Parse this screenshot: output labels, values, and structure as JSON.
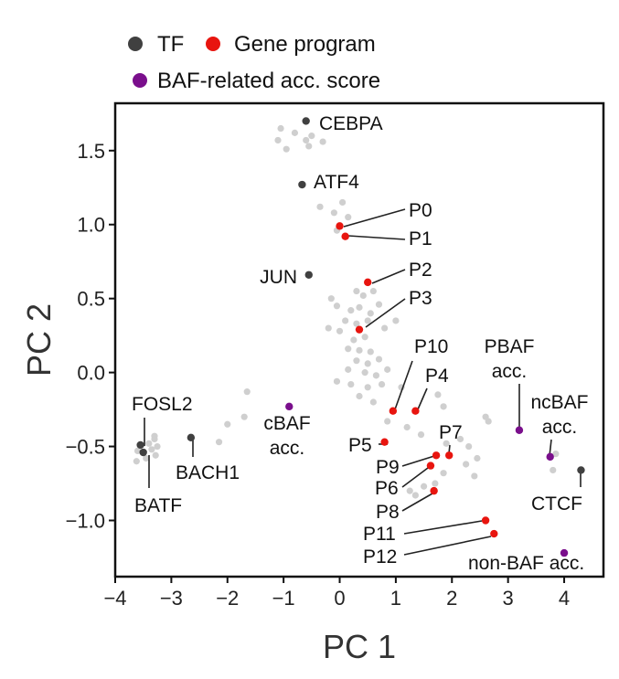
{
  "chart_data": {
    "type": "scatter",
    "xlabel": "PC 1",
    "ylabel": "PC 2",
    "xlim": [
      -4.0,
      4.7
    ],
    "ylim": [
      -1.38,
      1.82
    ],
    "xticks": [
      -4,
      -3,
      -2,
      -1,
      0,
      1,
      2,
      3,
      4
    ],
    "xtick_labels": [
      "−4",
      "−3",
      "−2",
      "−1",
      "0",
      "1",
      "2",
      "3",
      "4"
    ],
    "yticks": [
      -1.0,
      -0.5,
      0.0,
      0.5,
      1.0,
      1.5
    ],
    "ytick_labels": [
      "−1.0",
      "−0.5",
      "0.0",
      "0.5",
      "1.0",
      "1.5"
    ],
    "grid": false,
    "legend": {
      "placement": "top",
      "entries": [
        {
          "label": "TF",
          "color": "#404040"
        },
        {
          "label": "Gene program",
          "color": "#e8150f"
        },
        {
          "label": "BAF-related acc. score",
          "color": "#7a0f8c"
        }
      ]
    },
    "colors": {
      "tf": "#404040",
      "program": "#e8150f",
      "baf": "#7a0f8c",
      "background": "#cfcfcf"
    },
    "series": [
      {
        "name": "TF",
        "points": [
          {
            "label": "CEBPA",
            "x": -0.6,
            "y": 1.7
          },
          {
            "label": "ATF4",
            "x": -0.67,
            "y": 1.27
          },
          {
            "label": "JUN",
            "x": -0.55,
            "y": 0.66
          },
          {
            "label": "FOSL2",
            "x": -3.55,
            "y": -0.49
          },
          {
            "label": "BATF",
            "x": -3.5,
            "y": -0.54
          },
          {
            "label": "BACH1",
            "x": -2.65,
            "y": -0.44
          },
          {
            "label": "CTCF",
            "x": 4.3,
            "y": -0.66
          }
        ]
      },
      {
        "name": "Gene program",
        "points": [
          {
            "label": "P0",
            "x": 0.0,
            "y": 0.99
          },
          {
            "label": "P1",
            "x": 0.1,
            "y": 0.92
          },
          {
            "label": "P2",
            "x": 0.5,
            "y": 0.61
          },
          {
            "label": "P3",
            "x": 0.35,
            "y": 0.29
          },
          {
            "label": "P10",
            "x": 0.95,
            "y": -0.26
          },
          {
            "label": "P4",
            "x": 1.35,
            "y": -0.26
          },
          {
            "label": "P5",
            "x": 0.8,
            "y": -0.47
          },
          {
            "label": "P7",
            "x": 1.95,
            "y": -0.56
          },
          {
            "label": "P9",
            "x": 1.72,
            "y": -0.56
          },
          {
            "label": "P6",
            "x": 1.62,
            "y": -0.63
          },
          {
            "label": "P8",
            "x": 1.68,
            "y": -0.8
          },
          {
            "label": "P11",
            "x": 2.6,
            "y": -1.0
          },
          {
            "label": "P12",
            "x": 2.75,
            "y": -1.09
          }
        ]
      },
      {
        "name": "BAF-related acc. score",
        "points": [
          {
            "label": "cBAF acc.",
            "x": -0.9,
            "y": -0.23
          },
          {
            "label": "PBAF acc.",
            "x": 3.2,
            "y": -0.39
          },
          {
            "label": "ncBAF acc.",
            "x": 3.75,
            "y": -0.57
          },
          {
            "label": "non-BAF acc.",
            "x": 4.0,
            "y": -1.22
          }
        ]
      },
      {
        "points": [
          {
            "x": -1.05,
            "y": 1.65
          },
          {
            "x": -0.8,
            "y": 1.62
          },
          {
            "x": -1.1,
            "y": 1.57
          },
          {
            "x": -0.6,
            "y": 1.57
          },
          {
            "x": -0.95,
            "y": 1.51
          },
          {
            "x": -0.55,
            "y": 1.53
          },
          {
            "x": -0.3,
            "y": 1.56
          },
          {
            "x": -0.5,
            "y": 1.6
          },
          {
            "x": 0.05,
            "y": 1.15
          },
          {
            "x": -0.1,
            "y": 1.08
          },
          {
            "x": 0.15,
            "y": 1.05
          },
          {
            "x": -0.35,
            "y": 1.12
          },
          {
            "x": -0.05,
            "y": 0.96
          },
          {
            "x": 0.3,
            "y": 0.55
          },
          {
            "x": 0.42,
            "y": 0.52
          },
          {
            "x": 0.6,
            "y": 0.55
          },
          {
            "x": -0.15,
            "y": 0.5
          },
          {
            "x": -0.05,
            "y": 0.45
          },
          {
            "x": 0.2,
            "y": 0.42
          },
          {
            "x": 0.35,
            "y": 0.44
          },
          {
            "x": 0.55,
            "y": 0.4
          },
          {
            "x": 0.7,
            "y": 0.46
          },
          {
            "x": 0.1,
            "y": 0.35
          },
          {
            "x": 0.3,
            "y": 0.33
          },
          {
            "x": 0.5,
            "y": 0.35
          },
          {
            "x": -0.2,
            "y": 0.3
          },
          {
            "x": 0.0,
            "y": 0.28
          },
          {
            "x": 0.25,
            "y": 0.22
          },
          {
            "x": 0.45,
            "y": 0.24
          },
          {
            "x": 0.8,
            "y": 0.3
          },
          {
            "x": 1.0,
            "y": 0.35
          },
          {
            "x": 0.15,
            "y": 0.16
          },
          {
            "x": 0.35,
            "y": 0.15
          },
          {
            "x": 0.55,
            "y": 0.14
          },
          {
            "x": 0.3,
            "y": 0.08
          },
          {
            "x": 0.5,
            "y": 0.06
          },
          {
            "x": 0.7,
            "y": 0.09
          },
          {
            "x": 0.15,
            "y": 0.02
          },
          {
            "x": 0.45,
            "y": 0.0
          },
          {
            "x": 0.65,
            "y": -0.02
          },
          {
            "x": 0.85,
            "y": 0.02
          },
          {
            "x": -0.05,
            "y": -0.06
          },
          {
            "x": 0.2,
            "y": -0.08
          },
          {
            "x": 0.5,
            "y": -0.1
          },
          {
            "x": 0.75,
            "y": -0.08
          },
          {
            "x": 0.35,
            "y": -0.16
          },
          {
            "x": 1.1,
            "y": -0.1
          },
          {
            "x": 0.6,
            "y": -0.2
          },
          {
            "x": 1.75,
            "y": -0.15
          },
          {
            "x": 1.85,
            "y": -0.23
          },
          {
            "x": 0.85,
            "y": -0.33
          },
          {
            "x": 1.2,
            "y": -0.37
          },
          {
            "x": 1.45,
            "y": -0.42
          },
          {
            "x": 1.9,
            "y": -0.48
          },
          {
            "x": 2.15,
            "y": -0.45
          },
          {
            "x": 2.3,
            "y": -0.5
          },
          {
            "x": 2.25,
            "y": -0.62
          },
          {
            "x": 2.45,
            "y": -0.58
          },
          {
            "x": 2.4,
            "y": -0.7
          },
          {
            "x": 1.85,
            "y": -0.68
          },
          {
            "x": 1.7,
            "y": -0.75
          },
          {
            "x": 1.25,
            "y": -0.8
          },
          {
            "x": 1.35,
            "y": -0.83
          },
          {
            "x": 1.5,
            "y": -0.77
          },
          {
            "x": 2.6,
            "y": -0.3
          },
          {
            "x": 2.65,
            "y": -0.33
          },
          {
            "x": 3.85,
            "y": -0.55
          },
          {
            "x": 3.8,
            "y": -0.66
          },
          {
            "x": -1.65,
            "y": -0.13
          },
          {
            "x": -1.7,
            "y": -0.3
          },
          {
            "x": -2.0,
            "y": -0.35
          },
          {
            "x": -2.15,
            "y": -0.47
          },
          {
            "x": -3.3,
            "y": -0.43
          },
          {
            "x": -3.25,
            "y": -0.5
          },
          {
            "x": -3.35,
            "y": -0.52
          },
          {
            "x": -3.28,
            "y": -0.56
          },
          {
            "x": -3.6,
            "y": -0.53
          },
          {
            "x": -3.45,
            "y": -0.58
          },
          {
            "x": -3.62,
            "y": -0.6
          },
          {
            "x": -3.3,
            "y": -0.45
          },
          {
            "x": -3.4,
            "y": -0.48
          }
        ]
      }
    ]
  }
}
